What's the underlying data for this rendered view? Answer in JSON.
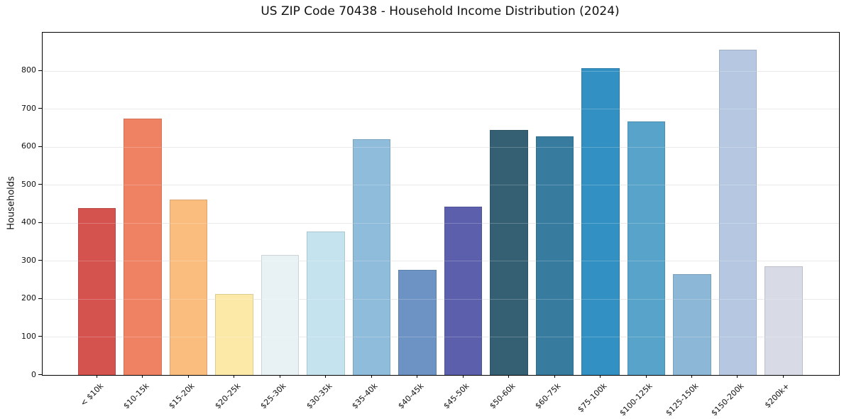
{
  "chart_data": {
    "type": "bar",
    "title": "US ZIP Code 70438 - Household Income Distribution (2024)",
    "xlabel": "",
    "ylabel": "Households",
    "categories": [
      "< $10k",
      "$10-15k",
      "$15-20k",
      "$20-25k",
      "$25-30k",
      "$30-35k",
      "$35-40k",
      "$40-45k",
      "$45-50k",
      "$50-60k",
      "$60-75k",
      "$75-100k",
      "$100-125k",
      "$125-150k",
      "$150-200k",
      "$200k+"
    ],
    "values": [
      439,
      675,
      461,
      212,
      315,
      377,
      620,
      276,
      442,
      645,
      627,
      807,
      666,
      265,
      856,
      285
    ],
    "bar_colors": [
      "#d5534e",
      "#f08264",
      "#fbbd7e",
      "#fce9a7",
      "#e8f2f5",
      "#c4e3ee",
      "#90bcdb",
      "#6c93c4",
      "#5c5fac",
      "#356073",
      "#377b9f",
      "#3390c2",
      "#58a3c9",
      "#8db7d7",
      "#b6c8e1",
      "#d8dae6"
    ],
    "ylim": [
      0,
      900
    ],
    "yticks": [
      0,
      100,
      200,
      300,
      400,
      500,
      600,
      700,
      800
    ],
    "grid": "horizontal",
    "gridline_color": "#e4e4e4",
    "axis_color": "#000000",
    "background": "#ffffff",
    "legend": "none"
  }
}
